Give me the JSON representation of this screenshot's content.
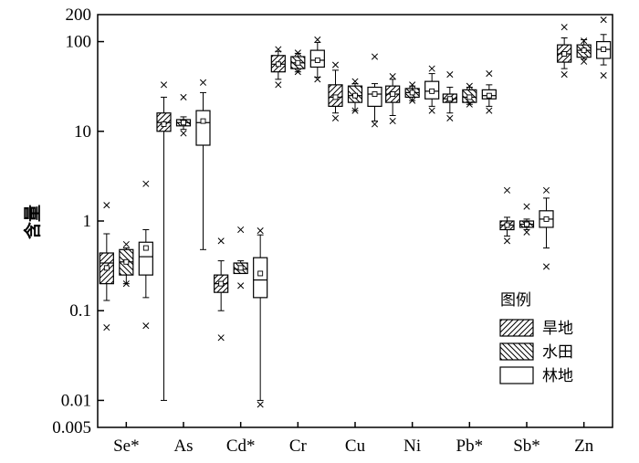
{
  "chart_data": {
    "type": "box",
    "ylabel": "含量",
    "yscale": "log",
    "ylim": [
      0.005,
      200
    ],
    "y_ticks": [
      {
        "v": 200,
        "label": "200"
      },
      {
        "v": 100,
        "label": "100"
      },
      {
        "v": 10,
        "label": "10"
      },
      {
        "v": 1,
        "label": "1"
      },
      {
        "v": 0.1,
        "label": "0.1"
      },
      {
        "v": 0.01,
        "label": "0.01"
      },
      {
        "v": 0.005,
        "label": "0.005"
      }
    ],
    "categories": [
      "Se*",
      "As",
      "Cd*",
      "Cr",
      "Cu",
      "Ni",
      "Pb*",
      "Sb*",
      "Zn"
    ],
    "legend": {
      "title": "图例",
      "items": [
        {
          "label": "旱地",
          "pattern": "hatch-forward"
        },
        {
          "label": "水田",
          "pattern": "hatch-back"
        },
        {
          "label": "林地",
          "pattern": "none"
        }
      ]
    },
    "series": [
      {
        "group": "Se*",
        "landuse": "旱地",
        "min": 0.13,
        "q1": 0.2,
        "median": 0.34,
        "q3": 0.44,
        "max": 0.72,
        "mean": 0.3,
        "out_low": 0.065,
        "out_high": 1.5
      },
      {
        "group": "Se*",
        "landuse": "水田",
        "min": 0.2,
        "q1": 0.25,
        "median": 0.35,
        "q3": 0.48,
        "max": 0.5,
        "mean": 0.35,
        "out_low": 0.2,
        "out_high": 0.55
      },
      {
        "group": "Se*",
        "landuse": "林地",
        "min": 0.14,
        "q1": 0.25,
        "median": 0.4,
        "q3": 0.58,
        "max": 0.8,
        "mean": 0.5,
        "out_low": 0.068,
        "out_high": 2.6
      },
      {
        "group": "As",
        "landuse": "旱地",
        "min": 0.01,
        "q1": 10,
        "median": 12.5,
        "q3": 16,
        "max": 24,
        "mean": 12,
        "out_low": null,
        "out_high": 33
      },
      {
        "group": "As",
        "landuse": "水田",
        "min": 10.5,
        "q1": 11.5,
        "median": 12.5,
        "q3": 13.5,
        "max": 14.5,
        "mean": 12.5,
        "out_low": 9.5,
        "out_high": 24
      },
      {
        "group": "As",
        "landuse": "林地",
        "min": 0.48,
        "q1": 7,
        "median": 12.5,
        "q3": 17,
        "max": 27,
        "mean": 13,
        "out_low": null,
        "out_high": 35
      },
      {
        "group": "Cd*",
        "landuse": "旱地",
        "min": 0.1,
        "q1": 0.16,
        "median": 0.2,
        "q3": 0.25,
        "max": 0.36,
        "mean": 0.2,
        "out_low": 0.05,
        "out_high": 0.6
      },
      {
        "group": "Cd*",
        "landuse": "水田",
        "min": 0.26,
        "q1": 0.26,
        "median": 0.29,
        "q3": 0.34,
        "max": 0.36,
        "mean": 0.3,
        "out_low": 0.19,
        "out_high": 0.8
      },
      {
        "group": "Cd*",
        "landuse": "林地",
        "min": 0.01,
        "q1": 0.14,
        "median": 0.22,
        "q3": 0.39,
        "max": 0.7,
        "mean": 0.26,
        "out_low": 0.009,
        "out_high": 0.78
      },
      {
        "group": "Cr",
        "landuse": "旱地",
        "min": 38,
        "q1": 46,
        "median": 56,
        "q3": 70,
        "max": 78,
        "mean": 56,
        "out_low": 33,
        "out_high": 82
      },
      {
        "group": "Cr",
        "landuse": "水田",
        "min": 46,
        "q1": 50,
        "median": 58,
        "q3": 68,
        "max": 74,
        "mean": 58,
        "out_low": 46,
        "out_high": 75
      },
      {
        "group": "Cr",
        "landuse": "林地",
        "min": 40,
        "q1": 52,
        "median": 62,
        "q3": 80,
        "max": 98,
        "mean": 62,
        "out_low": 38,
        "out_high": 105
      },
      {
        "group": "Cu",
        "landuse": "旱地",
        "min": 16,
        "q1": 19,
        "median": 24,
        "q3": 33,
        "max": 48,
        "mean": 24,
        "out_low": 14,
        "out_high": 55
      },
      {
        "group": "Cu",
        "landuse": "水田",
        "min": 17,
        "q1": 21,
        "median": 25,
        "q3": 32,
        "max": 34,
        "mean": 25,
        "out_low": 17,
        "out_high": 36
      },
      {
        "group": "Cu",
        "landuse": "林地",
        "min": 13,
        "q1": 19,
        "median": 26,
        "q3": 31,
        "max": 34,
        "mean": 26,
        "out_low": 12,
        "out_high": 68
      },
      {
        "group": "Ni",
        "landuse": "旱地",
        "min": 15,
        "q1": 21,
        "median": 26,
        "q3": 32,
        "max": 38,
        "mean": 26,
        "out_low": 13,
        "out_high": 41
      },
      {
        "group": "Ni",
        "landuse": "水田",
        "min": 22,
        "q1": 24,
        "median": 27,
        "q3": 30,
        "max": 32,
        "mean": 27,
        "out_low": 22,
        "out_high": 33
      },
      {
        "group": "Ni",
        "landuse": "林地",
        "min": 19,
        "q1": 23,
        "median": 28,
        "q3": 36,
        "max": 44,
        "mean": 28,
        "out_low": 17,
        "out_high": 50
      },
      {
        "group": "Pb*",
        "landuse": "旱地",
        "min": 16,
        "q1": 21,
        "median": 23,
        "q3": 26,
        "max": 31,
        "mean": 23,
        "out_low": 14,
        "out_high": 43
      },
      {
        "group": "Pb*",
        "landuse": "水田",
        "min": 20,
        "q1": 21,
        "median": 24,
        "q3": 29,
        "max": 31,
        "mean": 24,
        "out_low": 20,
        "out_high": 32
      },
      {
        "group": "Pb*",
        "landuse": "林地",
        "min": 19,
        "q1": 23,
        "median": 25,
        "q3": 29,
        "max": 33,
        "mean": 25,
        "out_low": 17,
        "out_high": 44
      },
      {
        "group": "Sb*",
        "landuse": "旱地",
        "min": 0.68,
        "q1": 0.8,
        "median": 0.9,
        "q3": 1.0,
        "max": 1.1,
        "mean": 0.9,
        "out_low": 0.6,
        "out_high": 2.2
      },
      {
        "group": "Sb*",
        "landuse": "水田",
        "min": 0.8,
        "q1": 0.85,
        "median": 0.92,
        "q3": 1.0,
        "max": 1.05,
        "mean": 0.92,
        "out_low": 0.75,
        "out_high": 1.45
      },
      {
        "group": "Sb*",
        "landuse": "林地",
        "min": 0.5,
        "q1": 0.85,
        "median": 1.05,
        "q3": 1.3,
        "max": 1.8,
        "mean": 1.05,
        "out_low": 0.31,
        "out_high": 2.2
      },
      {
        "group": "Zn",
        "landuse": "旱地",
        "min": 50,
        "q1": 59,
        "median": 73,
        "q3": 92,
        "max": 110,
        "mean": 73,
        "out_low": 43,
        "out_high": 145
      },
      {
        "group": "Zn",
        "landuse": "水田",
        "min": 64,
        "q1": 67,
        "median": 80,
        "q3": 92,
        "max": 105,
        "mean": 80,
        "out_low": 60,
        "out_high": 102
      },
      {
        "group": "Zn",
        "landuse": "林地",
        "min": 55,
        "q1": 65,
        "median": 82,
        "q3": 100,
        "max": 120,
        "mean": 82,
        "out_low": 42,
        "out_high": 175
      }
    ]
  }
}
